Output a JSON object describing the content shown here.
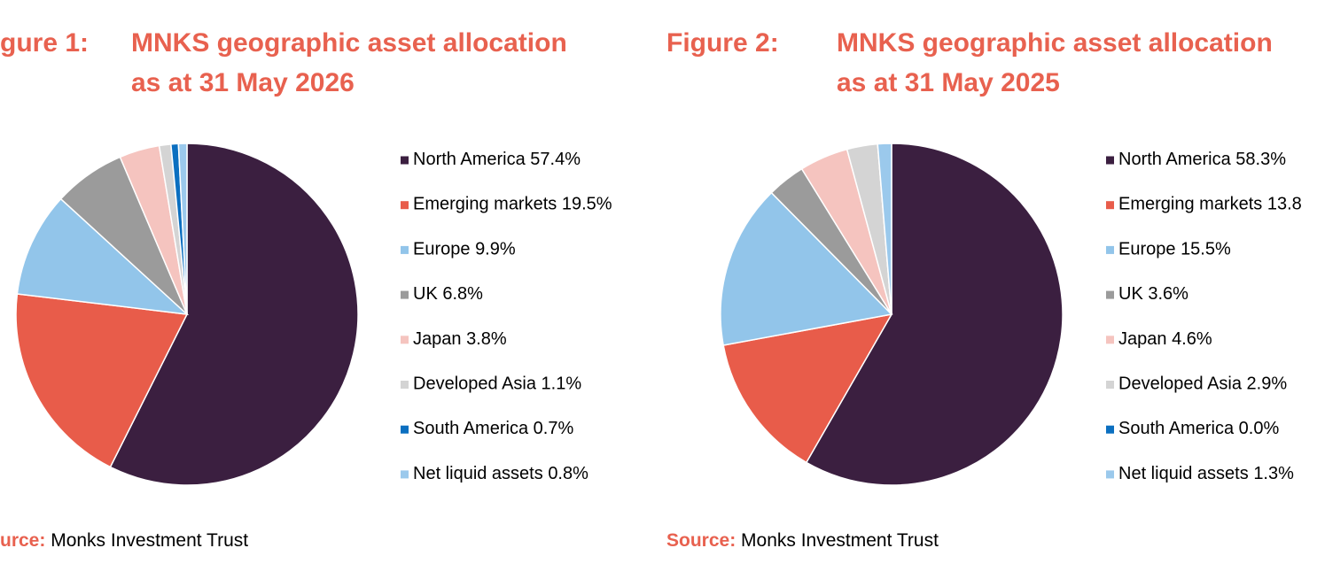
{
  "chart_data": [
    {
      "type": "pie",
      "figure_label": "gure 1:",
      "title": [
        "MNKS geographic asset allocation",
        "as at 31 May 2026"
      ],
      "categories": [
        "North America",
        "Emerging markets",
        "Europe",
        "UK",
        "Japan",
        "Developed Asia",
        "South America",
        "Net liquid assets"
      ],
      "values": [
        57.4,
        19.5,
        9.9,
        6.8,
        3.8,
        1.1,
        0.7,
        0.8
      ],
      "value_labels": [
        "57.4%",
        "19.5%",
        "9.9%",
        "6.8%",
        "3.8%",
        "1.1%",
        "0.7%",
        "0.8%"
      ],
      "colors": [
        "#3b1f40",
        "#e85c4a",
        "#92c5ea",
        "#9b9b9b",
        "#f5c4bf",
        "#d4d4d4",
        "#0b6fc0",
        "#9bc9ec"
      ],
      "legend": "right",
      "source_label": "urce:",
      "source": "Monks Investment Trust"
    },
    {
      "type": "pie",
      "figure_label": "Figure 2:",
      "title": [
        "MNKS geographic asset allocation",
        "as at 31 May 2025"
      ],
      "categories": [
        "North America",
        "Emerging markets",
        "Europe",
        "UK",
        "Japan",
        "Developed Asia",
        "South America",
        "Net liquid assets"
      ],
      "values": [
        58.3,
        13.8,
        15.5,
        3.6,
        4.6,
        2.9,
        0.0,
        1.3
      ],
      "value_labels": [
        "58.3%",
        "13.8",
        "15.5%",
        "3.6%",
        "4.6%",
        "2.9%",
        "0.0%",
        "1.3%"
      ],
      "colors": [
        "#3b1f40",
        "#e85c4a",
        "#92c5ea",
        "#9b9b9b",
        "#f5c4bf",
        "#d4d4d4",
        "#0b6fc0",
        "#9bc9ec"
      ],
      "legend": "right",
      "source_label": "Source:",
      "source": "Monks Investment Trust"
    }
  ]
}
